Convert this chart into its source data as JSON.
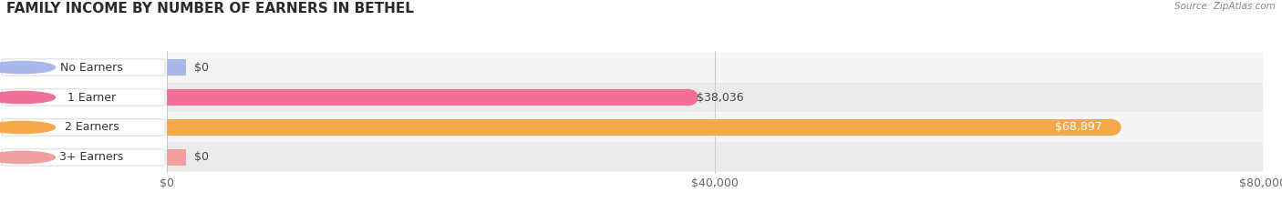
{
  "title": "FAMILY INCOME BY NUMBER OF EARNERS IN BETHEL",
  "source": "Source: ZipAtlas.com",
  "categories": [
    "No Earners",
    "1 Earner",
    "2 Earners",
    "3+ Earners"
  ],
  "values": [
    0,
    38036,
    68897,
    0
  ],
  "bar_colors": [
    "#a8b8e8",
    "#f07098",
    "#f5a84a",
    "#f0a0a0"
  ],
  "xlim": [
    0,
    80000
  ],
  "xticks": [
    0,
    40000,
    80000
  ],
  "xtick_labels": [
    "$0",
    "$40,000",
    "$80,000"
  ],
  "title_fontsize": 11,
  "label_fontsize": 9,
  "value_fontsize": 9,
  "bar_height": 0.52,
  "fig_bg_color": "#ffffff",
  "row_bg_light": "#f5f5f5",
  "row_bg_dark": "#ebebeb"
}
